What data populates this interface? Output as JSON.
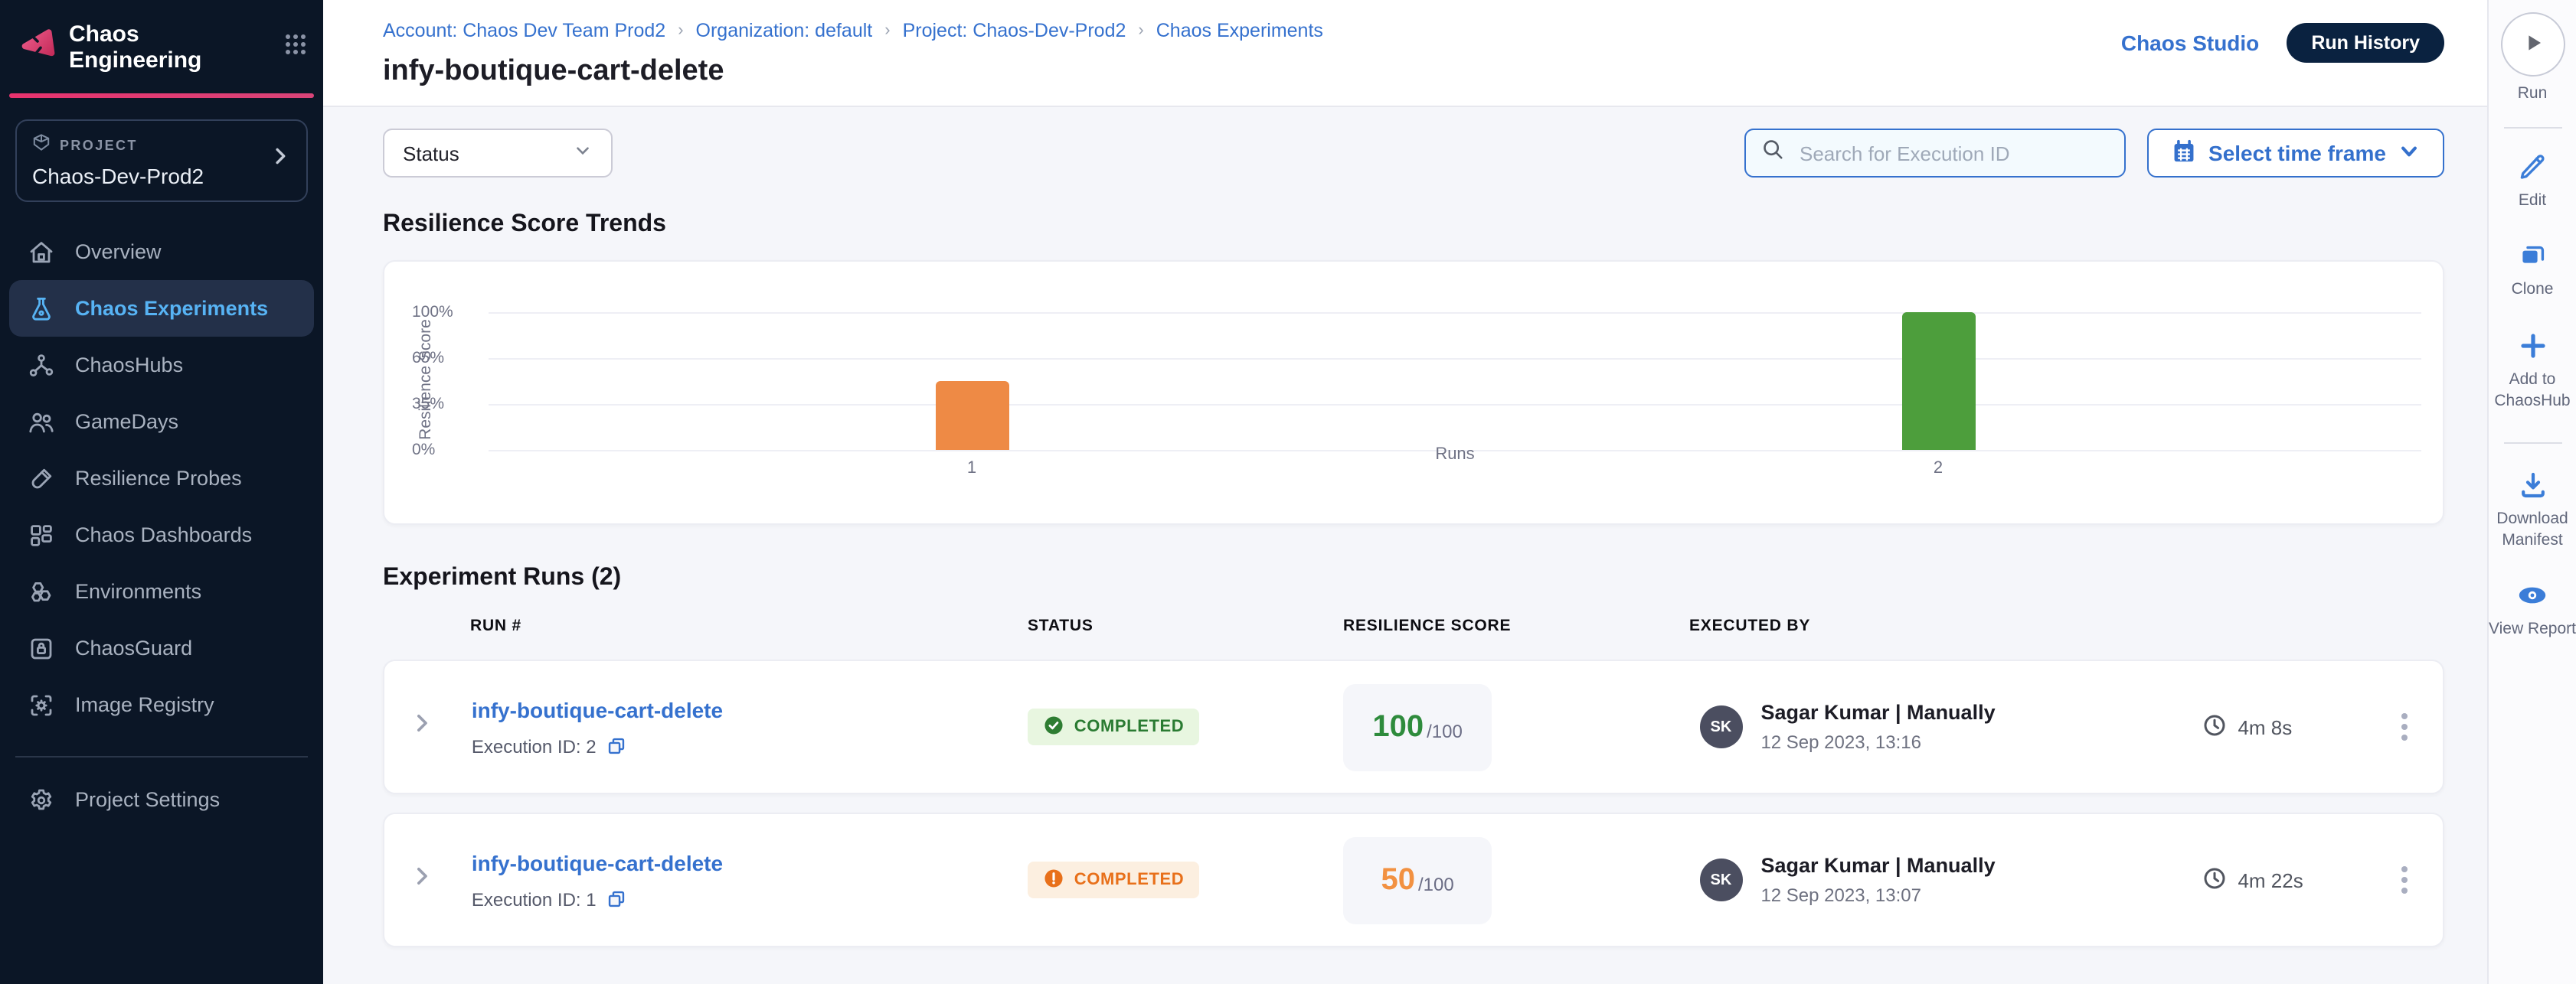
{
  "app": {
    "product_title": "Chaos Engineering"
  },
  "sidebar": {
    "project_label": "PROJECT",
    "project_name": "Chaos-Dev-Prod2",
    "items": [
      {
        "label": "Overview",
        "icon": "home-icon",
        "active": false
      },
      {
        "label": "Chaos Experiments",
        "icon": "flask-icon",
        "active": true
      },
      {
        "label": "ChaosHubs",
        "icon": "hub-icon",
        "active": false
      },
      {
        "label": "GameDays",
        "icon": "people-icon",
        "active": false
      },
      {
        "label": "Resilience Probes",
        "icon": "probe-icon",
        "active": false
      },
      {
        "label": "Chaos Dashboards",
        "icon": "dashboard-icon",
        "active": false
      },
      {
        "label": "Environments",
        "icon": "hexagons-icon",
        "active": false
      },
      {
        "label": "ChaosGuard",
        "icon": "guard-icon",
        "active": false
      },
      {
        "label": "Image Registry",
        "icon": "registry-icon",
        "active": false
      }
    ],
    "footer_item": {
      "label": "Project Settings",
      "icon": "gear-icon"
    }
  },
  "header": {
    "breadcrumb": [
      "Account: Chaos Dev Team Prod2",
      "Organization: default",
      "Project: Chaos-Dev-Prod2",
      "Chaos Experiments"
    ],
    "title": "infy-boutique-cart-delete",
    "chaos_studio_label": "Chaos Studio",
    "run_history_label": "Run History"
  },
  "filters": {
    "status_label": "Status",
    "search_placeholder": "Search for Execution ID",
    "time_frame_label": "Select time frame"
  },
  "chart_section": {
    "title": "Resilience Score Trends"
  },
  "chart_data": {
    "type": "bar",
    "title": "Resilience Score Trends",
    "categories": [
      "1",
      "2"
    ],
    "values": [
      50,
      100
    ],
    "bar_colors": [
      "#EE8A45",
      "#4D9E3C"
    ],
    "xlabel": "Runs",
    "ylabel": "Resilience Score",
    "yticks": [
      0,
      35,
      65,
      100
    ],
    "ytick_labels": [
      "0%",
      "35%",
      "65%",
      "100%"
    ],
    "ylim": [
      0,
      100
    ],
    "grid": true,
    "legend": false
  },
  "runs_section": {
    "title": "Experiment Runs (2)",
    "columns": [
      "RUN #",
      "STATUS",
      "RESILIENCE SCORE",
      "EXECUTED BY"
    ],
    "rows": [
      {
        "name": "infy-boutique-cart-delete",
        "execution_id_label": "Execution ID: 2",
        "status": "COMPLETED",
        "status_variant": "success",
        "score": "100",
        "score_total": "/100",
        "executed_by": "Sagar Kumar | Manually",
        "executed_at": "12 Sep 2023, 13:16",
        "avatar_initials": "SK",
        "duration": "4m 8s"
      },
      {
        "name": "infy-boutique-cart-delete",
        "execution_id_label": "Execution ID: 1",
        "status": "COMPLETED",
        "status_variant": "warning",
        "score": "50",
        "score_total": "/100",
        "executed_by": "Sagar Kumar | Manually",
        "executed_at": "12 Sep 2023, 13:07",
        "avatar_initials": "SK",
        "duration": "4m 22s"
      }
    ]
  },
  "right_rail": {
    "run_label": "Run",
    "actions": [
      {
        "label": "Edit",
        "icon": "edit-icon"
      },
      {
        "label": "Clone",
        "icon": "clone-icon"
      },
      {
        "label": "Add to ChaosHub",
        "icon": "plus-icon"
      },
      {
        "divider": true
      },
      {
        "label": "Download Manifest",
        "icon": "download-icon"
      },
      {
        "label": "View Report",
        "icon": "eye-icon"
      }
    ]
  },
  "colors": {
    "sidebar_bg": "#0B1626",
    "accent_pink": "#E8336E",
    "active_blue": "#57B3F4",
    "primary_blue": "#3470CC",
    "success_green": "#2E8B3C",
    "warning_orange": "#E8701A",
    "bar_orange": "#EE8A45",
    "bar_green": "#4D9E3C",
    "run_history_bg": "#0A2240"
  }
}
